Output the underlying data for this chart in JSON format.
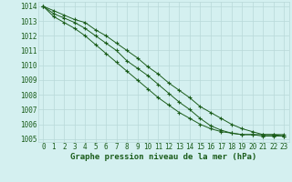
{
  "title": "Graphe pression niveau de la mer (hPa)",
  "background_color": "#d4f0f0",
  "grid_color": "#b8d8d8",
  "line_color": "#1a5c1a",
  "xlim": [
    -0.5,
    23.5
  ],
  "ylim": [
    1004.8,
    1014.3
  ],
  "yticks": [
    1005,
    1006,
    1007,
    1008,
    1009,
    1010,
    1011,
    1012,
    1013,
    1014
  ],
  "xticks": [
    0,
    1,
    2,
    3,
    4,
    5,
    6,
    7,
    8,
    9,
    10,
    11,
    12,
    13,
    14,
    15,
    16,
    17,
    18,
    19,
    20,
    21,
    22,
    23
  ],
  "line1": [
    1014.0,
    1013.7,
    1013.4,
    1013.1,
    1012.9,
    1012.4,
    1012.0,
    1011.5,
    1011.0,
    1010.5,
    1009.9,
    1009.4,
    1008.8,
    1008.3,
    1007.8,
    1007.2,
    1006.8,
    1006.4,
    1006.0,
    1005.7,
    1005.5,
    1005.3,
    1005.3,
    1005.2
  ],
  "line2": [
    1014.0,
    1013.5,
    1013.2,
    1012.9,
    1012.5,
    1012.0,
    1011.5,
    1011.0,
    1010.3,
    1009.8,
    1009.3,
    1008.7,
    1008.1,
    1007.5,
    1007.0,
    1006.4,
    1005.9,
    1005.6,
    1005.4,
    1005.3,
    1005.3,
    1005.3,
    1005.3,
    1005.3
  ],
  "line3": [
    1014.0,
    1013.3,
    1012.9,
    1012.5,
    1012.0,
    1011.4,
    1010.8,
    1010.2,
    1009.6,
    1009.0,
    1008.4,
    1007.8,
    1007.3,
    1006.8,
    1006.4,
    1006.0,
    1005.7,
    1005.5,
    1005.4,
    1005.3,
    1005.3,
    1005.2,
    1005.2,
    1005.2
  ],
  "tick_fontsize": 5.5,
  "title_fontsize": 6.5
}
